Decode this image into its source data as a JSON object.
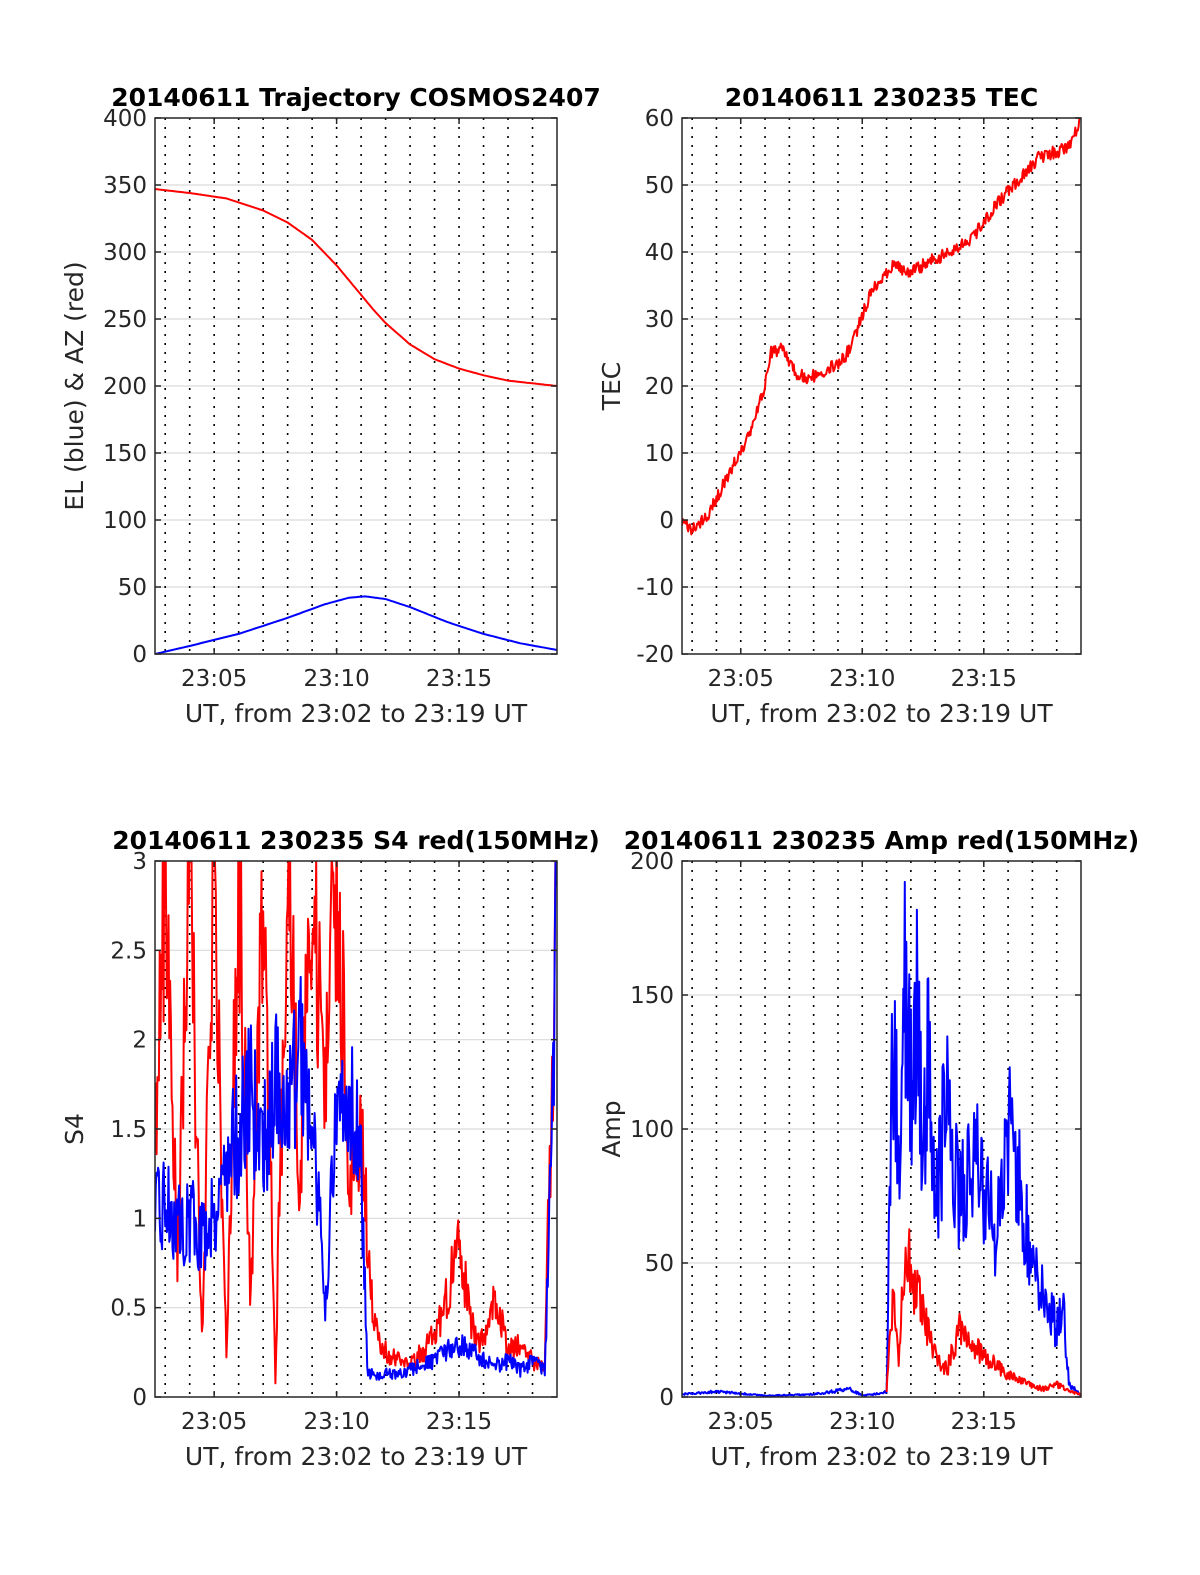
{
  "colors": {
    "blue": "#0000ff",
    "red": "#ff0000",
    "grid": "#d9d9d9",
    "axis": "#262626"
  },
  "shared_x_ticks": [
    "23:05",
    "23:10",
    "23:15"
  ],
  "chart_data": [
    {
      "type": "line",
      "title": "20140611 Trajectory COSMOS2407",
      "xlabel": "UT, from 23:02 to 23:19 UT",
      "ylabel": "EL (blue) & AZ (red)",
      "xlim": [
        "23:02:35",
        "23:19:00"
      ],
      "ylim": [
        0,
        400
      ],
      "yticks": [
        0,
        50,
        100,
        150,
        200,
        250,
        300,
        350,
        400
      ],
      "xticks": [
        "23:05",
        "23:10",
        "23:15"
      ],
      "grid": true,
      "dotted_vertical_lines_every_minute": true,
      "series": [
        {
          "color": "blue",
          "x": [
            "23:02:35",
            "23:04:00",
            "23:06:00",
            "23:08:00",
            "23:09:30",
            "23:10:30",
            "23:11:10",
            "23:12:00",
            "23:13:00",
            "23:14:30",
            "23:16:00",
            "23:17:30",
            "23:19:00"
          ],
          "values": [
            0,
            6,
            15,
            27,
            37,
            42,
            43,
            41,
            35,
            24,
            15,
            8,
            3
          ]
        },
        {
          "color": "red",
          "x": [
            "23:02:35",
            "23:04:00",
            "23:05:30",
            "23:07:00",
            "23:08:00",
            "23:09:00",
            "23:10:00",
            "23:11:00",
            "23:11:30",
            "23:12:00",
            "23:13:00",
            "23:14:00",
            "23:15:00",
            "23:16:00",
            "23:17:00",
            "23:18:00",
            "23:19:00"
          ],
          "values": [
            347,
            344,
            340,
            331,
            322,
            309,
            290,
            268,
            257,
            247,
            231,
            220,
            213,
            208,
            204,
            202,
            200
          ]
        }
      ]
    },
    {
      "type": "line",
      "title": "20140611 230235 TEC",
      "xlabel": "UT, from 23:02 to 23:19 UT",
      "ylabel": "TEC",
      "xlim": [
        "23:02:35",
        "23:19:00"
      ],
      "ylim": [
        -20,
        60
      ],
      "yticks": [
        -20,
        -10,
        0,
        10,
        20,
        30,
        40,
        50,
        60
      ],
      "xticks": [
        "23:05",
        "23:10",
        "23:15"
      ],
      "grid": true,
      "dotted_vertical_lines_every_minute": true,
      "series": [
        {
          "color": "red",
          "x": [
            "23:02:35",
            "23:03:00",
            "23:03:30",
            "23:04:00",
            "23:04:30",
            "23:05:00",
            "23:05:30",
            "23:06:00",
            "23:06:15",
            "23:06:45",
            "23:07:15",
            "23:07:45",
            "23:08:15",
            "23:08:45",
            "23:09:15",
            "23:09:45",
            "23:10:15",
            "23:10:45",
            "23:11:15",
            "23:12:00",
            "23:13:00",
            "23:13:45",
            "23:14:30",
            "23:15:30",
            "23:16:30",
            "23:17:15",
            "23:18:00",
            "23:18:30",
            "23:19:00"
          ],
          "values": [
            -0.5,
            -1.5,
            0,
            3,
            7,
            10,
            14,
            20,
            25,
            25.5,
            22,
            21,
            22,
            23,
            24,
            28,
            33,
            36,
            38,
            37,
            39,
            40,
            42,
            47,
            51,
            54,
            55,
            55.5,
            60
          ]
        }
      ]
    },
    {
      "type": "line",
      "title": "20140611 230235 S4 red(150MHz)",
      "xlabel": "UT, from 23:02 to 23:19 UT",
      "ylabel": "S4",
      "xlim": [
        "23:02:35",
        "23:19:00"
      ],
      "ylim": [
        0,
        3
      ],
      "yticks": [
        "0",
        "0.5",
        "1",
        "1.5",
        "2",
        "2.5",
        "3"
      ],
      "xticks": [
        "23:05",
        "23:10",
        "23:15"
      ],
      "grid": true,
      "dotted_vertical_lines_every_minute": true,
      "series": [
        {
          "color": "red",
          "x": [
            "23:02:35",
            "23:03:00",
            "23:03:30",
            "23:04:00",
            "23:04:30",
            "23:05:00",
            "23:05:30",
            "23:06:00",
            "23:06:30",
            "23:07:00",
            "23:07:30",
            "23:08:00",
            "23:08:30",
            "23:09:00",
            "23:09:30",
            "23:10:00",
            "23:10:30",
            "23:11:00",
            "23:11:30",
            "23:12:00",
            "23:12:30",
            "23:13:00",
            "23:13:30",
            "23:14:00",
            "23:14:30",
            "23:15:00",
            "23:15:30",
            "23:16:00",
            "23:16:30",
            "23:17:00",
            "23:17:30",
            "23:18:00",
            "23:18:30",
            "23:19:00"
          ],
          "values": [
            1.5,
            3.0,
            0.8,
            3.0,
            0.3,
            3.0,
            0.2,
            3.0,
            0.5,
            3.0,
            0.1,
            3.0,
            1.2,
            3.0,
            1.6,
            3.0,
            1.3,
            1.5,
            0.4,
            0.25,
            0.2,
            0.18,
            0.25,
            0.35,
            0.55,
            0.9,
            0.4,
            0.3,
            0.55,
            0.25,
            0.3,
            0.2,
            0.15,
            3.0
          ]
        },
        {
          "color": "blue",
          "x": [
            "23:02:35",
            "23:03:00",
            "23:03:30",
            "23:04:00",
            "23:04:30",
            "23:05:00",
            "23:05:30",
            "23:06:00",
            "23:06:30",
            "23:07:00",
            "23:07:30",
            "23:08:00",
            "23:08:30",
            "23:09:00",
            "23:09:30",
            "23:10:00",
            "23:10:30",
            "23:11:00",
            "23:11:15",
            "23:11:30",
            "23:12:00",
            "23:12:30",
            "23:13:00",
            "23:13:30",
            "23:14:00",
            "23:14:30",
            "23:15:00",
            "23:15:30",
            "23:16:00",
            "23:16:30",
            "23:17:00",
            "23:17:30",
            "23:18:00",
            "23:18:30",
            "23:18:45",
            "23:19:00"
          ],
          "values": [
            1.0,
            1.1,
            0.95,
            1.0,
            0.9,
            1.05,
            1.3,
            1.5,
            1.7,
            1.4,
            1.8,
            1.6,
            1.9,
            1.7,
            0.5,
            1.5,
            1.8,
            1.3,
            0.15,
            0.12,
            0.13,
            0.12,
            0.15,
            0.18,
            0.2,
            0.25,
            0.3,
            0.25,
            0.2,
            0.18,
            0.2,
            0.15,
            0.2,
            0.15,
            1.2,
            3.0
          ]
        }
      ]
    },
    {
      "type": "line",
      "title": "20140611 230235 Amp red(150MHz)",
      "xlabel": "UT, from 23:02 to 23:19 UT",
      "ylabel": "Amp",
      "xlim": [
        "23:02:35",
        "23:19:00"
      ],
      "ylim": [
        0,
        200
      ],
      "yticks": [
        0,
        50,
        100,
        150,
        200
      ],
      "xticks": [
        "23:05",
        "23:10",
        "23:15"
      ],
      "grid": true,
      "dotted_vertical_lines_every_minute": true,
      "series": [
        {
          "color": "blue",
          "x": [
            "23:02:35",
            "23:04:00",
            "23:06:00",
            "23:08:00",
            "23:09:30",
            "23:10:00",
            "23:10:30",
            "23:11:00",
            "23:11:15",
            "23:11:30",
            "23:11:45",
            "23:12:00",
            "23:12:15",
            "23:12:30",
            "23:12:45",
            "23:13:00",
            "23:13:30",
            "23:14:00",
            "23:14:30",
            "23:15:00",
            "23:15:30",
            "23:16:00",
            "23:16:30",
            "23:17:00",
            "23:17:30",
            "23:18:00",
            "23:18:15",
            "23:18:30",
            "23:19:00"
          ],
          "values": [
            1,
            2,
            0.5,
            1,
            3,
            0.5,
            1,
            2,
            130,
            95,
            160,
            120,
            140,
            100,
            128,
            75,
            110,
            70,
            90,
            80,
            60,
            105,
            75,
            50,
            40,
            25,
            35,
            5,
            0.5
          ]
        },
        {
          "color": "red",
          "x": [
            "23:11:00",
            "23:11:15",
            "23:11:30",
            "23:11:45",
            "23:12:00",
            "23:12:30",
            "23:13:00",
            "23:13:30",
            "23:14:00",
            "23:14:30",
            "23:15:00",
            "23:15:30",
            "23:16:00",
            "23:16:30",
            "23:17:00",
            "23:17:30",
            "23:18:00",
            "23:18:30",
            "23:19:00"
          ],
          "values": [
            2,
            40,
            15,
            60,
            45,
            30,
            15,
            10,
            28,
            20,
            15,
            12,
            8,
            6,
            4,
            3,
            5,
            2,
            1
          ]
        }
      ]
    }
  ]
}
